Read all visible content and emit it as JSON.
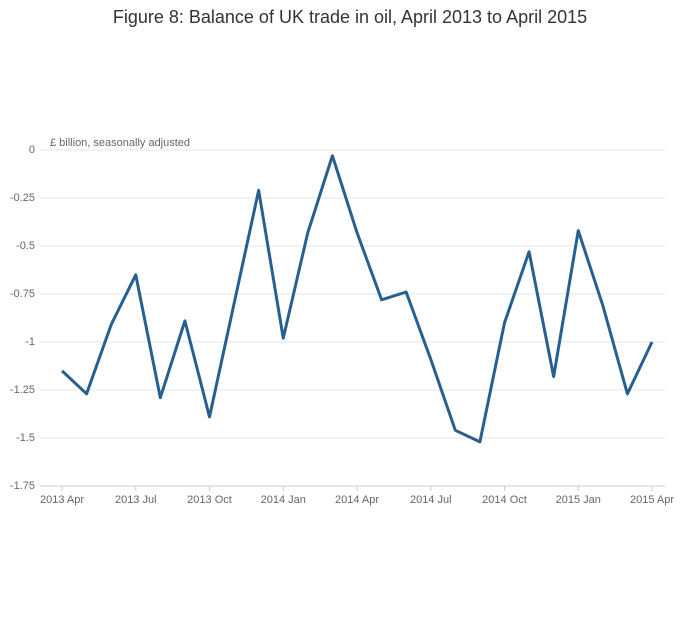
{
  "chart_data": {
    "type": "line",
    "title": "Figure 8: Balance of UK trade in oil, April 2013 to April 2015",
    "y_label": "£ billion, seasonally adjusted",
    "categories": [
      "2013 Apr",
      null,
      null,
      "2013 Jul",
      null,
      null,
      "2013 Oct",
      null,
      null,
      "2014 Jan",
      null,
      null,
      "2014 Apr",
      null,
      null,
      "2014 Jul",
      null,
      null,
      "2014 Oct",
      null,
      null,
      "2015 Jan",
      null,
      null,
      "2015 Apr"
    ],
    "series": [
      {
        "name": "Balance of UK trade in oil",
        "color": "#27608f",
        "values": [
          -1.15,
          -1.27,
          -0.91,
          -0.65,
          -1.29,
          -0.89,
          -1.39,
          -0.8,
          -0.21,
          -0.98,
          -0.43,
          -0.03,
          -0.43,
          -0.78,
          -0.74,
          -1.09,
          -1.46,
          -1.52,
          -0.9,
          -0.53,
          -1.18,
          -0.42,
          -0.81,
          -1.27,
          -1.0
        ]
      }
    ],
    "ylim": [
      -1.75,
      0
    ],
    "yticks": [
      0,
      -0.25,
      -0.5,
      -0.75,
      -1,
      -1.25,
      -1.5,
      -1.75
    ],
    "grid": true
  }
}
